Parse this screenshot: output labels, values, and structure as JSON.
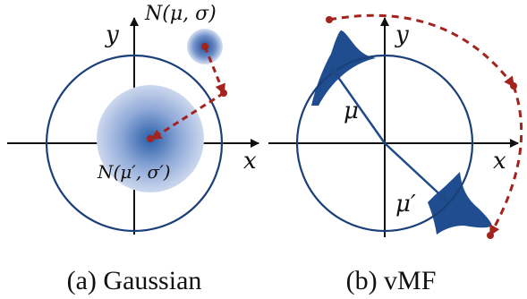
{
  "colors": {
    "circle": "#1b3f78",
    "gaussian_center": "#2a5ea8",
    "gaussian_edge": "#cdd8ee",
    "small_blob_center": "#1f4b93",
    "vmf_fill": "#1f4d8f",
    "arrow": "#1e4a8a",
    "dashed": "#a3231f",
    "axes": "#111111"
  },
  "panel_a": {
    "x_label": "x",
    "y_label": "y",
    "label_top": "N(μ, σ)",
    "label_center": "N(μ′, σ′)",
    "caption": "(a) Gaussian"
  },
  "panel_b": {
    "x_label": "x",
    "y_label": "y",
    "mu_label": "μ",
    "mu_prime_label": "μ′",
    "caption": "(b) vMF"
  },
  "icons": {
    "dashed_arrow": "dashed-curved-arrow",
    "vector_arrow": "arrow"
  }
}
